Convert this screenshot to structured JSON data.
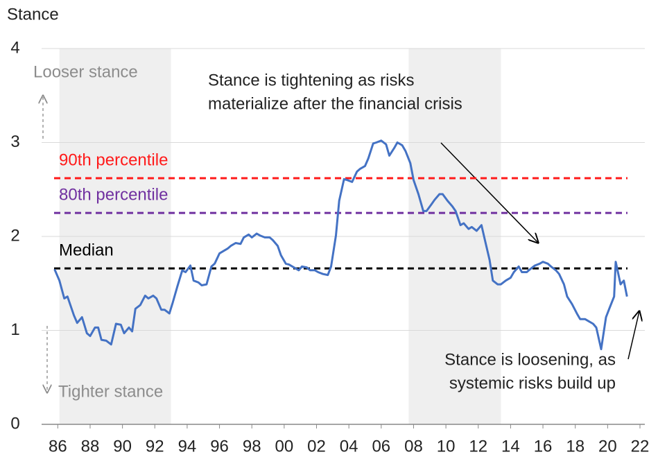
{
  "chart_data": {
    "type": "line",
    "y_axis_label": "Stance",
    "xlim": [
      1985,
      2022.3
    ],
    "ylim": [
      0,
      4
    ],
    "yticks": [
      0,
      1,
      2,
      3,
      4
    ],
    "xticks": [
      {
        "value": 1986,
        "label": "86"
      },
      {
        "value": 1988,
        "label": "88"
      },
      {
        "value": 1990,
        "label": "90"
      },
      {
        "value": 1992,
        "label": "92"
      },
      {
        "value": 1994,
        "label": "94"
      },
      {
        "value": 1996,
        "label": "96"
      },
      {
        "value": 1998,
        "label": "98"
      },
      {
        "value": 2000,
        "label": "00"
      },
      {
        "value": 2002,
        "label": "02"
      },
      {
        "value": 2004,
        "label": "04"
      },
      {
        "value": 2006,
        "label": "06"
      },
      {
        "value": 2008,
        "label": "08"
      },
      {
        "value": 2010,
        "label": "10"
      },
      {
        "value": 2012,
        "label": "12"
      },
      {
        "value": 2014,
        "label": "14"
      },
      {
        "value": 2016,
        "label": "16"
      },
      {
        "value": 2018,
        "label": "18"
      },
      {
        "value": 2020,
        "label": "20"
      },
      {
        "value": 2022,
        "label": "22"
      }
    ],
    "grid": true,
    "shaded_periods": [
      [
        1986.1,
        1993.0
      ],
      [
        2007.7,
        2013.4
      ]
    ],
    "reference_lines": [
      {
        "label": "90th percentile",
        "value": 2.62,
        "color": "#ff1a1a"
      },
      {
        "label": "80th percentile",
        "value": 2.25,
        "color": "#7030a0"
      },
      {
        "label": "Median",
        "value": 1.66,
        "color": "#000000"
      }
    ],
    "direction_labels": {
      "up": "Looser stance",
      "down": "Tighter stance"
    },
    "annotations": [
      {
        "lines": [
          "Stance is tightening as risks",
          "materialize after the financial crisis"
        ]
      },
      {
        "lines": [
          "Stance is loosening, as",
          "systemic risks build up"
        ]
      }
    ],
    "series": [
      {
        "name": "Stance",
        "color": "#4472c4",
        "x": [
          1985.8,
          1986.1,
          1986.4,
          1986.6,
          1987.0,
          1987.2,
          1987.5,
          1987.8,
          1988.0,
          1988.3,
          1988.5,
          1988.7,
          1989.0,
          1989.3,
          1989.6,
          1989.9,
          1990.1,
          1990.4,
          1990.6,
          1990.8,
          1991.1,
          1991.4,
          1991.6,
          1991.9,
          1992.1,
          1992.4,
          1992.6,
          1992.9,
          1993.1,
          1993.4,
          1993.7,
          1993.9,
          1994.2,
          1994.4,
          1994.7,
          1994.9,
          1995.2,
          1995.5,
          1995.7,
          1996.0,
          1996.2,
          1996.5,
          1996.7,
          1997.0,
          1997.3,
          1997.5,
          1997.8,
          1998.0,
          1998.3,
          1998.5,
          1998.8,
          1999.1,
          1999.3,
          1999.6,
          1999.8,
          2000.1,
          2000.3,
          2000.6,
          2000.9,
          2001.1,
          2001.4,
          2001.6,
          2001.9,
          2002.1,
          2002.4,
          2002.7,
          2002.9,
          2003.2,
          2003.4,
          2003.7,
          2003.9,
          2004.2,
          2004.5,
          2004.7,
          2005.0,
          2005.2,
          2005.5,
          2005.7,
          2006.0,
          2006.3,
          2006.5,
          2006.8,
          2007.0,
          2007.3,
          2007.5,
          2007.8,
          2008.0,
          2008.3,
          2008.6,
          2008.8,
          2009.1,
          2009.3,
          2009.6,
          2009.8,
          2010.1,
          2010.4,
          2010.6,
          2010.9,
          2011.1,
          2011.4,
          2011.6,
          2011.9,
          2012.2,
          2012.4,
          2012.7,
          2012.9,
          2013.2,
          2013.4,
          2013.7,
          2014.0,
          2014.2,
          2014.5,
          2014.7,
          2015.0,
          2015.2,
          2015.5,
          2015.8,
          2016.0,
          2016.3,
          2016.5,
          2016.8,
          2017.0,
          2017.3,
          2017.5,
          2017.8,
          2018.1,
          2018.3,
          2018.6,
          2018.8,
          2019.1,
          2019.3,
          2019.6,
          2019.9,
          2020.1,
          2020.4,
          2020.5,
          2020.8,
          2021.0,
          2021.2
        ],
        "values": [
          1.65,
          1.53,
          1.34,
          1.36,
          1.16,
          1.08,
          1.14,
          0.97,
          0.94,
          1.03,
          1.03,
          0.9,
          0.89,
          0.85,
          1.07,
          1.06,
          0.97,
          1.03,
          0.99,
          1.23,
          1.27,
          1.37,
          1.34,
          1.37,
          1.34,
          1.22,
          1.22,
          1.18,
          1.29,
          1.47,
          1.64,
          1.62,
          1.69,
          1.53,
          1.51,
          1.48,
          1.49,
          1.68,
          1.71,
          1.82,
          1.84,
          1.87,
          1.9,
          1.93,
          1.92,
          1.99,
          2.02,
          1.99,
          2.03,
          2.01,
          1.99,
          1.99,
          1.96,
          1.9,
          1.8,
          1.71,
          1.7,
          1.67,
          1.64,
          1.68,
          1.67,
          1.64,
          1.64,
          1.62,
          1.6,
          1.59,
          1.68,
          2.01,
          2.38,
          2.61,
          2.6,
          2.58,
          2.69,
          2.72,
          2.75,
          2.83,
          2.99,
          3.0,
          3.02,
          2.98,
          2.86,
          2.94,
          3.0,
          2.97,
          2.91,
          2.78,
          2.6,
          2.45,
          2.27,
          2.27,
          2.34,
          2.39,
          2.45,
          2.45,
          2.38,
          2.32,
          2.27,
          2.12,
          2.14,
          2.08,
          2.1,
          2.06,
          2.12,
          1.97,
          1.75,
          1.53,
          1.49,
          1.49,
          1.53,
          1.56,
          1.62,
          1.68,
          1.62,
          1.62,
          1.65,
          1.69,
          1.71,
          1.73,
          1.71,
          1.68,
          1.64,
          1.6,
          1.49,
          1.36,
          1.28,
          1.18,
          1.12,
          1.12,
          1.1,
          1.07,
          1.03,
          0.8,
          1.14,
          1.23,
          1.36,
          1.73,
          1.49,
          1.53,
          1.36
        ]
      }
    ]
  }
}
